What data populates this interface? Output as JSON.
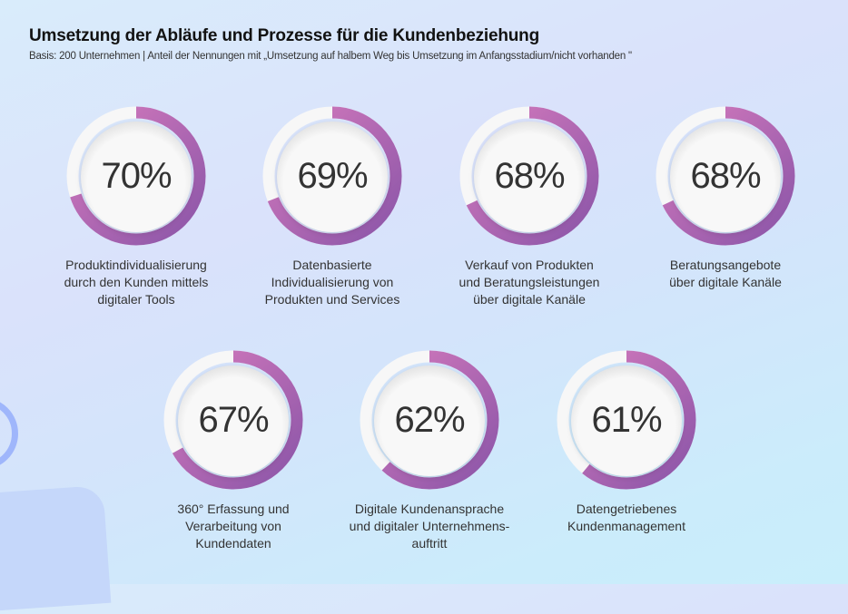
{
  "header": {
    "title": "Umsetzung der Abläufe und Prozesse für die Kundenbeziehung",
    "subtitle": "Basis: 200 Unternehmen | Anteil der Nennungen mit „Umsetzung auf halbem Weg bis Umsetzung im Anfangsstadium/nicht vorhanden \""
  },
  "colors": {
    "ring_start": "#d77bbd",
    "ring_end": "#8a55a8",
    "track": "#f7f7f7"
  },
  "chart_data": {
    "type": "pie",
    "subtype": "radial-progress",
    "title": "Umsetzung der Abläufe und Prozesse für die Kundenbeziehung",
    "subtitle": "Basis: 200 Unternehmen | Anteil der Nennungen mit „Umsetzung auf halbem Weg bis Umsetzung im Anfangsstadium/nicht vorhanden \"",
    "unit": "%",
    "items": [
      {
        "label": "Produktindividualisierung\ndurch den Kunden mittels\ndigitaler Tools",
        "value": 70,
        "display": "70%"
      },
      {
        "label": "Datenbasierte\nIndividualisierung von\nProdukten und Services",
        "value": 69,
        "display": "69%"
      },
      {
        "label": "Verkauf von Produkten\nund Beratungsleistungen\nüber digitale Kanäle",
        "value": 68,
        "display": "68%"
      },
      {
        "label": "Beratungsangebote\nüber digitale Kanäle",
        "value": 68,
        "display": "68%"
      },
      {
        "label": "360° Erfassung und\nVerarbeitung von\nKundendaten",
        "value": 67,
        "display": "67%"
      },
      {
        "label": "Digitale Kundenansprache\nund digitaler Unternehmens-\nauftritt",
        "value": 62,
        "display": "62%"
      },
      {
        "label": "Datengetriebenes\nKundenmanagement",
        "value": 61,
        "display": "61%"
      }
    ]
  }
}
